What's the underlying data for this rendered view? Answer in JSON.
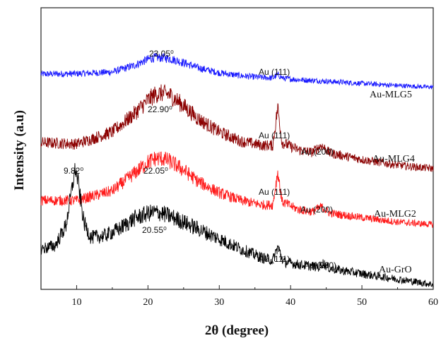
{
  "chart_data": {
    "type": "line",
    "title": "",
    "xlabel": "2θ (degree)",
    "ylabel": "Intensity (a.u)",
    "xlim": [
      5,
      60
    ],
    "x_ticks": [
      10,
      20,
      30,
      40,
      50,
      60
    ],
    "grid": false,
    "series": [
      {
        "name": "Au-MLG5",
        "color": "#1a1aff",
        "points": [
          [
            5,
            0.35
          ],
          [
            10,
            0.36
          ],
          [
            15,
            0.4
          ],
          [
            18,
            0.55
          ],
          [
            20,
            0.7
          ],
          [
            21,
            0.74
          ],
          [
            22,
            0.74
          ],
          [
            23,
            0.72
          ],
          [
            25,
            0.62
          ],
          [
            27,
            0.5
          ],
          [
            30,
            0.38
          ],
          [
            33,
            0.31
          ],
          [
            36,
            0.27
          ],
          [
            37.5,
            0.26
          ],
          [
            38.2,
            0.33
          ],
          [
            39,
            0.25
          ],
          [
            41,
            0.22
          ],
          [
            44,
            0.19
          ],
          [
            50,
            0.13
          ],
          [
            55,
            0.08
          ],
          [
            60,
            0.04
          ]
        ]
      },
      {
        "name": "Au-MLG4",
        "color": "#8b0000",
        "points": [
          [
            5,
            0.4
          ],
          [
            10,
            0.38
          ],
          [
            15,
            0.55
          ],
          [
            18,
            0.8
          ],
          [
            20,
            1.0
          ],
          [
            21,
            1.08
          ],
          [
            22,
            1.1
          ],
          [
            23,
            1.08
          ],
          [
            25,
            0.92
          ],
          [
            27,
            0.74
          ],
          [
            30,
            0.55
          ],
          [
            33,
            0.42
          ],
          [
            36,
            0.36
          ],
          [
            37.5,
            0.36
          ],
          [
            38.2,
            0.9
          ],
          [
            38.8,
            0.4
          ],
          [
            41,
            0.3
          ],
          [
            43,
            0.26
          ],
          [
            44.3,
            0.36
          ],
          [
            45.5,
            0.25
          ],
          [
            50,
            0.16
          ],
          [
            55,
            0.08
          ],
          [
            60,
            0.03
          ]
        ]
      },
      {
        "name": "Au-MLG2",
        "color": "#ff1a1a",
        "points": [
          [
            5,
            0.4
          ],
          [
            10,
            0.4
          ],
          [
            15,
            0.55
          ],
          [
            18,
            0.82
          ],
          [
            20,
            1.0
          ],
          [
            21,
            1.06
          ],
          [
            22,
            1.06
          ],
          [
            23,
            1.02
          ],
          [
            25,
            0.88
          ],
          [
            27,
            0.7
          ],
          [
            30,
            0.52
          ],
          [
            33,
            0.4
          ],
          [
            36,
            0.33
          ],
          [
            37.5,
            0.33
          ],
          [
            38.2,
            0.85
          ],
          [
            38.8,
            0.38
          ],
          [
            41,
            0.26
          ],
          [
            43,
            0.22
          ],
          [
            44.3,
            0.3
          ],
          [
            45.5,
            0.2
          ],
          [
            50,
            0.13
          ],
          [
            55,
            0.06
          ],
          [
            60,
            0.02
          ]
        ]
      },
      {
        "name": "Au-GrO",
        "color": "#000000",
        "points": [
          [
            5,
            0.55
          ],
          [
            7,
            0.6
          ],
          [
            8.5,
            0.9
          ],
          [
            9.5,
            1.55
          ],
          [
            9.8,
            1.75
          ],
          [
            10.2,
            1.55
          ],
          [
            11,
            0.95
          ],
          [
            12,
            0.72
          ],
          [
            14,
            0.75
          ],
          [
            16,
            0.85
          ],
          [
            18,
            1.0
          ],
          [
            20,
            1.08
          ],
          [
            21,
            1.1
          ],
          [
            22,
            1.08
          ],
          [
            24,
            1.0
          ],
          [
            26,
            0.9
          ],
          [
            28,
            0.8
          ],
          [
            30,
            0.7
          ],
          [
            33,
            0.55
          ],
          [
            36,
            0.42
          ],
          [
            37.5,
            0.38
          ],
          [
            38.2,
            0.58
          ],
          [
            39,
            0.36
          ],
          [
            41,
            0.32
          ],
          [
            44,
            0.28
          ],
          [
            44.5,
            0.34
          ],
          [
            45.5,
            0.26
          ],
          [
            50,
            0.18
          ],
          [
            55,
            0.1
          ],
          [
            60,
            0.02
          ]
        ]
      }
    ],
    "annotations": {
      "mlg5_peak": "23.05⁰",
      "mlg5_au111": "Au (111)",
      "mlg4_peak": "22.90⁰",
      "mlg4_au111": "Au (111)",
      "mlg4_au200": "Au (200)",
      "gro_peak1": "9.82⁰",
      "mlg2_peak": "22.05⁰",
      "mlg2_au111": "Au (111)",
      "mlg2_au200": "Au (200)",
      "gro_peak2": "20.55⁰",
      "gro_au111": "Au (111)",
      "gro_au200": "Au (200)"
    }
  }
}
